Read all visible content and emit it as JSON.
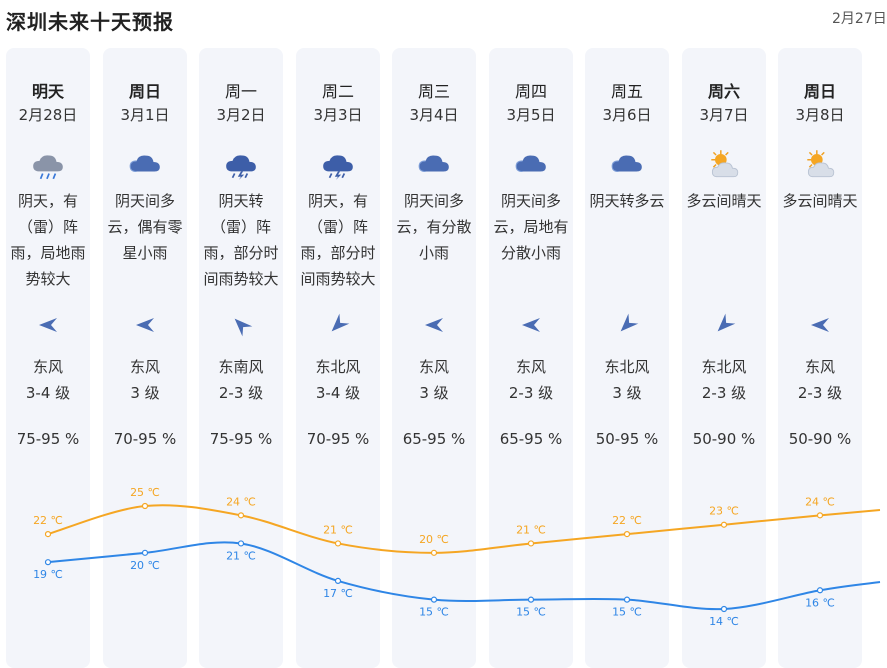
{
  "header": {
    "title": "深圳未来十天预报",
    "date_corner": "2月27日"
  },
  "colors": {
    "high": "#f5a623",
    "low": "#2f86e6",
    "column_bg": "#f3f5fa"
  },
  "days": [
    {
      "name": "明天",
      "date": "2月28日",
      "icon": "rain-cloud-icon",
      "desc": "阴天，有（雷）阵雨，局地雨势较大",
      "wind_dir": "东风",
      "wind_level": "3-4 级",
      "humidity": "75-95 %",
      "high": "22 ℃",
      "low": "19 ℃",
      "high_val": 22,
      "low_val": 19,
      "arrow": "west"
    },
    {
      "name": "周日",
      "date": "3月1日",
      "icon": "cloud-icon",
      "desc": "阴天间多云，偶有零星小雨",
      "wind_dir": "东风",
      "wind_level": "3 级",
      "humidity": "70-95 %",
      "high": "25 ℃",
      "low": "20 ℃",
      "high_val": 25,
      "low_val": 20,
      "arrow": "west"
    },
    {
      "name": "周一",
      "date": "3月2日",
      "icon": "thunder-rain-icon",
      "desc": "阴天转（雷）阵雨，部分时间雨势较大",
      "wind_dir": "东南风",
      "wind_level": "2-3 级",
      "humidity": "75-95 %",
      "high": "24 ℃",
      "low": "21 ℃",
      "high_val": 24,
      "low_val": 21,
      "arrow": "northwest"
    },
    {
      "name": "周二",
      "date": "3月3日",
      "icon": "thunder-rain-icon",
      "desc": "阴天，有（雷）阵雨，部分时间雨势较大",
      "wind_dir": "东北风",
      "wind_level": "3-4 级",
      "humidity": "70-95 %",
      "high": "21 ℃",
      "low": "17 ℃",
      "high_val": 21,
      "low_val": 17,
      "arrow": "southwest"
    },
    {
      "name": "周三",
      "date": "3月4日",
      "icon": "cloud-icon",
      "desc": "阴天间多云，有分散小雨",
      "wind_dir": "东风",
      "wind_level": "3 级",
      "humidity": "65-95 %",
      "high": "20 ℃",
      "low": "15 ℃",
      "high_val": 20,
      "low_val": 15,
      "arrow": "west"
    },
    {
      "name": "周四",
      "date": "3月5日",
      "icon": "cloud-icon",
      "desc": "阴天间多云，局地有分散小雨",
      "wind_dir": "东风",
      "wind_level": "2-3 级",
      "humidity": "65-95 %",
      "high": "21 ℃",
      "low": "15 ℃",
      "high_val": 21,
      "low_val": 15,
      "arrow": "west"
    },
    {
      "name": "周五",
      "date": "3月6日",
      "icon": "cloud-icon",
      "desc": "阴天转多云",
      "wind_dir": "东北风",
      "wind_level": "3 级",
      "humidity": "50-95 %",
      "high": "22 ℃",
      "low": "15 ℃",
      "high_val": 22,
      "low_val": 15,
      "arrow": "southwest"
    },
    {
      "name": "周六",
      "date": "3月7日",
      "icon": "partly-cloudy-icon",
      "desc": "多云间晴天",
      "wind_dir": "东北风",
      "wind_level": "2-3 级",
      "humidity": "50-90 %",
      "high": "23 ℃",
      "low": "14 ℃",
      "high_val": 23,
      "low_val": 14,
      "arrow": "southwest"
    },
    {
      "name": "周日",
      "date": "3月8日",
      "icon": "partly-cloudy-icon",
      "desc": "多云间晴天",
      "wind_dir": "东风",
      "wind_level": "2-3 级",
      "humidity": "50-90 %",
      "high": "24 ℃",
      "low": "16 ℃",
      "high_val": 24,
      "low_val": 16,
      "arrow": "west"
    }
  ]
}
